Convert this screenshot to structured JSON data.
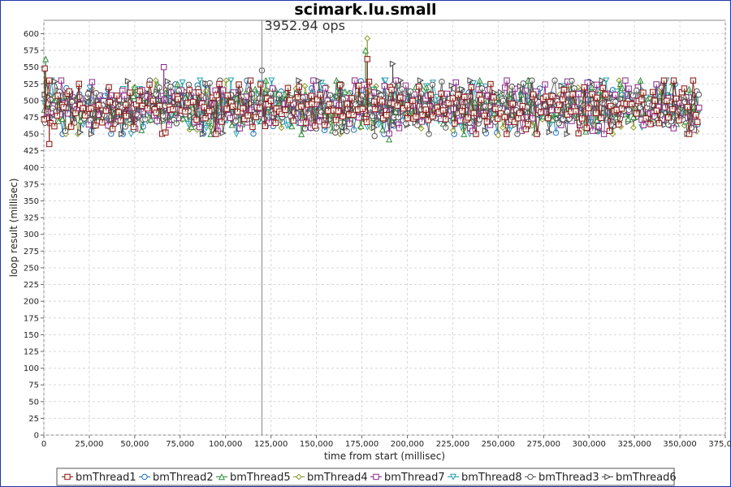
{
  "chart_data": {
    "type": "scatter",
    "title": "scimark.lu.small",
    "xlabel": "time from start (millisec)",
    "ylabel": "loop result (millisec)",
    "xlim": [
      0,
      375000
    ],
    "ylim": [
      0,
      620
    ],
    "x_ticks": [
      0,
      25000,
      50000,
      75000,
      100000,
      125000,
      150000,
      175000,
      200000,
      225000,
      250000,
      275000,
      300000,
      325000,
      350000,
      375000
    ],
    "x_tick_labels": [
      "0",
      "25,000",
      "50,000",
      "75,000",
      "100,000",
      "125,000",
      "150,000",
      "175,000",
      "200,000",
      "225,000",
      "250,000",
      "275,000",
      "300,000",
      "325,000",
      "350,000",
      "375,000"
    ],
    "y_ticks": [
      0,
      25,
      50,
      75,
      100,
      125,
      150,
      175,
      200,
      225,
      250,
      275,
      300,
      325,
      350,
      375,
      400,
      425,
      450,
      475,
      500,
      525,
      550,
      575,
      600
    ],
    "y_tick_labels": [
      "0",
      "25",
      "50",
      "75",
      "100",
      "125",
      "150",
      "175",
      "200",
      "225",
      "250",
      "275",
      "300",
      "325",
      "350",
      "375",
      "400",
      "425",
      "450",
      "475",
      "500",
      "525",
      "550",
      "575",
      "600"
    ],
    "grid": true,
    "legend_position": "bottom",
    "annotation": {
      "x": 120000,
      "label": "3952.94 ops"
    },
    "data_range": {
      "x_start": 0,
      "x_end": 361000,
      "y_min": 450,
      "y_max": 530
    },
    "series": [
      {
        "name": "bmThread1",
        "marker": "square",
        "color": "#8b1a1a",
        "fill": "#f5f0e8",
        "spikes": [
          [
            500,
            548
          ],
          [
            3000,
            435
          ],
          [
            178000,
            562
          ]
        ]
      },
      {
        "name": "bmThread2",
        "marker": "circle",
        "color": "#1f6fb5",
        "fill": "#ffffff",
        "spikes": [
          [
            103000,
            510
          ],
          [
            300000,
            528
          ]
        ]
      },
      {
        "name": "bmThread5",
        "marker": "triangle-up",
        "color": "#2e8b3a",
        "fill": "#ffffff",
        "spikes": [
          [
            1000,
            562
          ],
          [
            177000,
            575
          ],
          [
            190000,
            442
          ]
        ]
      },
      {
        "name": "bmThread4",
        "marker": "diamond",
        "color": "#8a9a2a",
        "fill": "#ffffff",
        "spikes": [
          [
            178000,
            593
          ],
          [
            250000,
            448
          ]
        ]
      },
      {
        "name": "bmThread7",
        "marker": "square",
        "color": "#8b2a8b",
        "fill": "#ffffff",
        "spikes": [
          [
            66000,
            550
          ],
          [
            320000,
            530
          ]
        ]
      },
      {
        "name": "bmThread8",
        "marker": "triangle-down",
        "color": "#20a0b0",
        "fill": "#ffffff",
        "spikes": [
          [
            188000,
            530
          ],
          [
            48000,
            450
          ]
        ]
      },
      {
        "name": "bmThread3",
        "marker": "circle",
        "color": "#555555",
        "fill": "#ffffff",
        "spikes": [
          [
            120000,
            545
          ],
          [
            182000,
            447
          ]
        ]
      },
      {
        "name": "bmThread6",
        "marker": "triangle-right",
        "color": "#444444",
        "fill": "#ffffff",
        "spikes": [
          [
            192000,
            555
          ],
          [
            3000,
            505
          ]
        ]
      }
    ]
  }
}
